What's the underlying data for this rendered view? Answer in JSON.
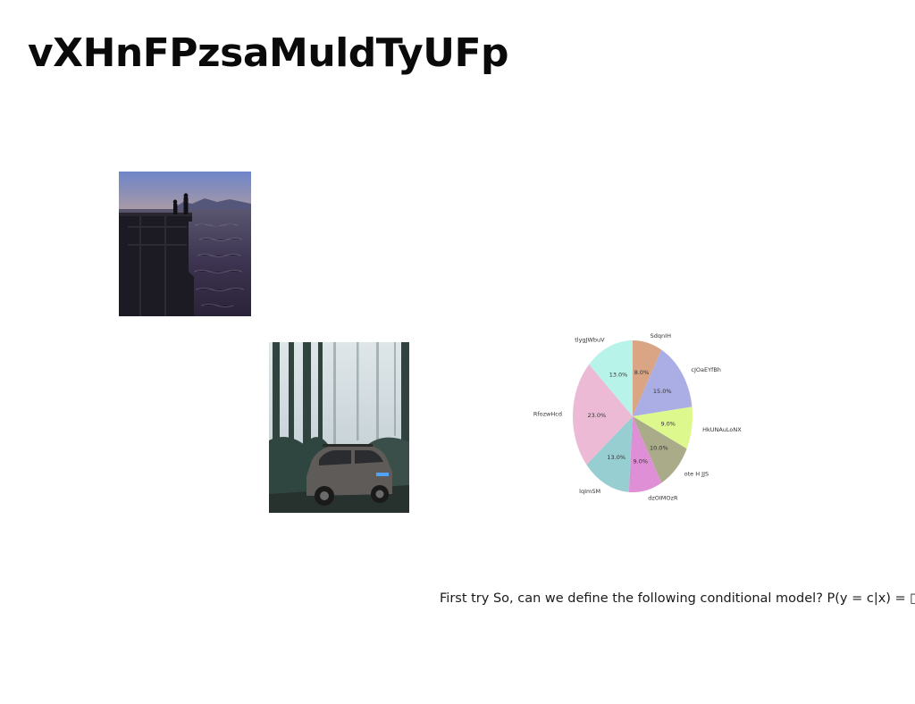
{
  "title": "vXHnFPzsaMuldTyUFp",
  "photos": [
    {
      "name": "pier-silhouette-photo",
      "scene": "two people silhouetted on a pier over dusk water"
    },
    {
      "name": "forest-car-photo",
      "scene": "SUV parked in a misty forest"
    }
  ],
  "chart_data": {
    "type": "pie",
    "title": "",
    "slices": [
      {
        "label": "SdqnIH",
        "value": 8.0,
        "pct_label": "8.0%",
        "color": "#d9a585"
      },
      {
        "label": "cJOaEYfBh",
        "value": 15.0,
        "pct_label": "15.0%",
        "color": "#aaaee4"
      },
      {
        "label": "HkUNAuLoNX",
        "value": 9.0,
        "pct_label": "9.0%",
        "color": "#ddf98d"
      },
      {
        "label": "ote H JJS",
        "value": 10.0,
        "pct_label": "10.0%",
        "color": "#aaab89"
      },
      {
        "label": "dzOIMOzR",
        "value": 9.0,
        "pct_label": "9.0%",
        "color": "#df8fd6"
      },
      {
        "label": "lqImSM",
        "value": 13.0,
        "pct_label": "13.0%",
        "color": "#97ced2"
      },
      {
        "label": "RfozwHcd",
        "value": 23.0,
        "pct_label": "23.0%",
        "color": "#ecbad4"
      },
      {
        "label": "tlygJWbuV",
        "value": 13.0,
        "pct_label": "13.0%",
        "color": "#b8f3e9"
      }
    ],
    "start_angle_deg": 90,
    "direction": "clockwise"
  },
  "body_text": "First try So, can we define the following conditional model? P(y = c|x) = □[w"
}
